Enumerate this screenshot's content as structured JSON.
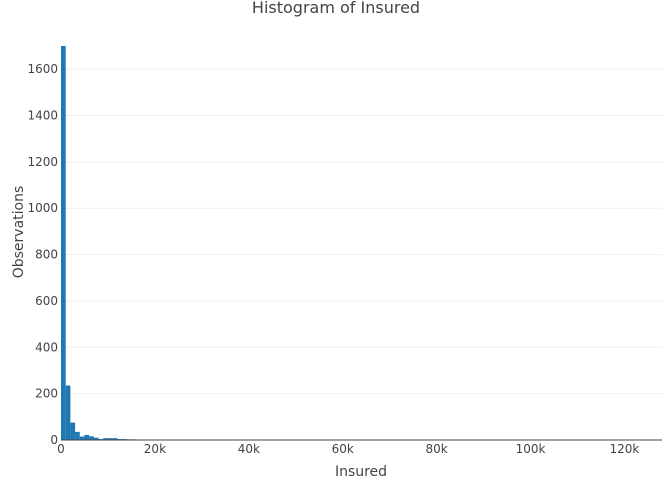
{
  "chart_data": {
    "type": "bar",
    "title": "Histogram of Insured",
    "xlabel": "Insured",
    "ylabel": "Observations",
    "xlim": [
      0,
      128000
    ],
    "ylim": [
      0,
      1700
    ],
    "bin_width": 1000,
    "x_ticks": [
      0,
      20000,
      40000,
      60000,
      80000,
      100000,
      120000
    ],
    "x_tick_labels": [
      "0",
      "20k",
      "40k",
      "60k",
      "80k",
      "100k",
      "120k"
    ],
    "y_ticks": [
      0,
      200,
      400,
      600,
      800,
      1000,
      1200,
      1400,
      1600
    ],
    "y_tick_labels": [
      "0",
      "200",
      "400",
      "600",
      "800",
      "1000",
      "1200",
      "1400",
      "1600"
    ],
    "grid": true,
    "legend": "none",
    "bar_color": "#1f77b4",
    "bins": [
      {
        "x": 0,
        "count": 1700
      },
      {
        "x": 1000,
        "count": 235
      },
      {
        "x": 2000,
        "count": 75
      },
      {
        "x": 3000,
        "count": 35
      },
      {
        "x": 4000,
        "count": 15
      },
      {
        "x": 5000,
        "count": 22
      },
      {
        "x": 6000,
        "count": 16
      },
      {
        "x": 7000,
        "count": 10
      },
      {
        "x": 8000,
        "count": 4
      },
      {
        "x": 9000,
        "count": 8
      },
      {
        "x": 10000,
        "count": 8
      },
      {
        "x": 11000,
        "count": 8
      },
      {
        "x": 12000,
        "count": 4
      },
      {
        "x": 13000,
        "count": 4
      },
      {
        "x": 14000,
        "count": 3
      },
      {
        "x": 15000,
        "count": 3
      },
      {
        "x": 17000,
        "count": 2
      },
      {
        "x": 18000,
        "count": 2
      },
      {
        "x": 19000,
        "count": 2
      },
      {
        "x": 20000,
        "count": 2
      },
      {
        "x": 22000,
        "count": 2
      },
      {
        "x": 23000,
        "count": 2
      },
      {
        "x": 26000,
        "count": 2
      },
      {
        "x": 31000,
        "count": 2
      },
      {
        "x": 34000,
        "count": 2
      },
      {
        "x": 35000,
        "count": 2
      },
      {
        "x": 37000,
        "count": 2
      },
      {
        "x": 45000,
        "count": 2
      },
      {
        "x": 48000,
        "count": 2
      },
      {
        "x": 54000,
        "count": 2
      },
      {
        "x": 55000,
        "count": 2
      },
      {
        "x": 60000,
        "count": 2
      },
      {
        "x": 66000,
        "count": 2
      },
      {
        "x": 80000,
        "count": 2
      },
      {
        "x": 121000,
        "count": 2
      },
      {
        "x": 127000,
        "count": 2
      }
    ]
  }
}
